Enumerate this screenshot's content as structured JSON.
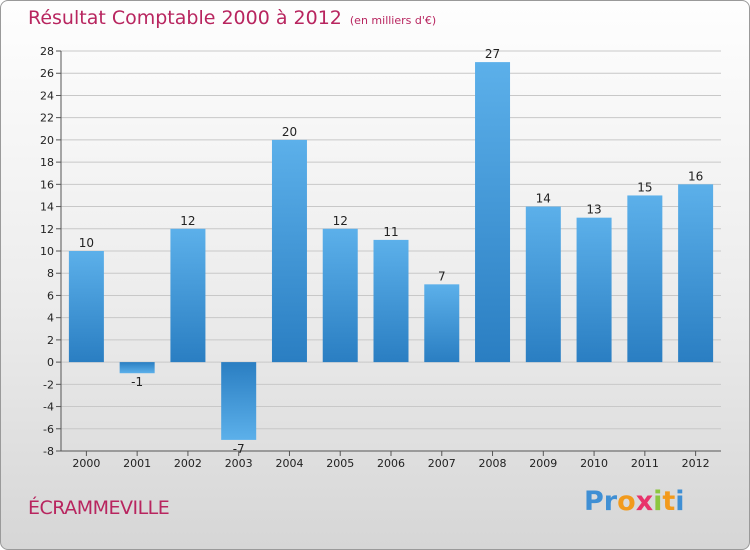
{
  "chart_data": {
    "type": "bar",
    "title": "Résultat Comptable 2000 à 2012",
    "subtitle": "(en milliers d'€)",
    "categories": [
      "2000",
      "2001",
      "2002",
      "2003",
      "2004",
      "2005",
      "2006",
      "2007",
      "2008",
      "2009",
      "2010",
      "2011",
      "2012"
    ],
    "values": [
      10,
      -1,
      12,
      -7,
      20,
      12,
      11,
      7,
      27,
      14,
      13,
      15,
      16
    ],
    "ylim": [
      -8,
      28
    ],
    "yticks": [
      -8,
      -6,
      -4,
      -2,
      0,
      2,
      4,
      6,
      8,
      10,
      12,
      14,
      16,
      18,
      20,
      22,
      24,
      26,
      28
    ],
    "grid": true,
    "legend": "none",
    "colors": {
      "bar_light": "#5cb0ea",
      "bar_dark": "#2a7ec2",
      "title": "#b8255f"
    }
  },
  "footer": {
    "commune": "ÉCRAMMEVILLE",
    "logo_letters": [
      "P",
      "r",
      "o",
      "x",
      "i",
      "t",
      "i"
    ],
    "logo_colors": [
      "#3f8fd4",
      "#3f8fd4",
      "#f29a1c",
      "#e8336b",
      "#8cc63f",
      "#f29a1c",
      "#3f8fd4"
    ]
  }
}
